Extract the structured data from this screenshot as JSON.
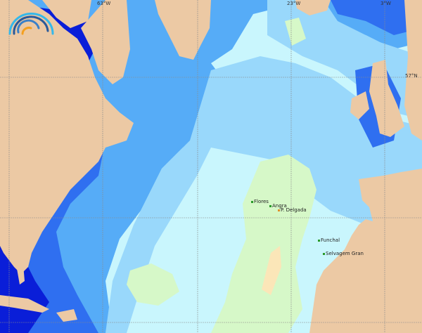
{
  "map": {
    "grid_labels": {
      "lon": [
        "63°W",
        "23°W",
        "3°W"
      ],
      "lat": [
        "57°N"
      ]
    },
    "places": [
      {
        "name": "Flores"
      },
      {
        "name": "Angra"
      },
      {
        "name": "P. Delgada"
      },
      {
        "name": "Funchal"
      },
      {
        "name": "Selvagem Gran"
      }
    ],
    "colors": {
      "land": "#ecc9a4",
      "deep_blue": "#0a1ed8",
      "blue": "#2f6ff0",
      "mid_blue": "#56acf7",
      "light_blue": "#99d8fb",
      "pale_cyan": "#c9f6fd",
      "pale_green": "#d6f8c8",
      "pale_orange": "#fbe6b8"
    },
    "logo": "arc-wave-logo"
  }
}
